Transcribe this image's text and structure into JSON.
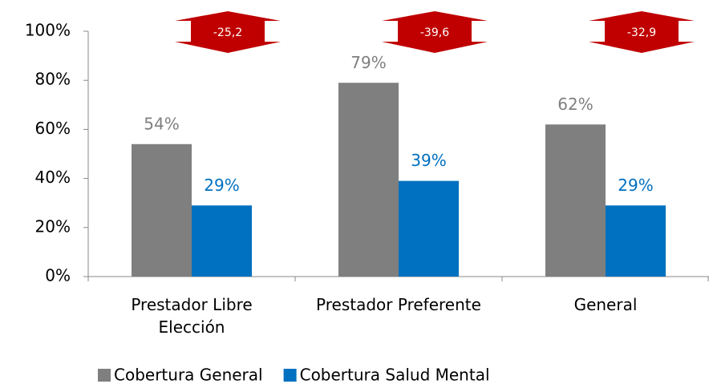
{
  "chart_data": {
    "type": "bar",
    "categories": [
      "Prestador Libre Elección",
      "Prestador Preferente",
      "General"
    ],
    "series": [
      {
        "name": "Cobertura General",
        "color": "#7f7f7f",
        "values": [
          54,
          79,
          62
        ],
        "value_labels": [
          "54%",
          "79%",
          "62%"
        ]
      },
      {
        "name": "Cobertura Salud Mental",
        "color": "#0070c0",
        "values": [
          29,
          39,
          29
        ],
        "value_labels": [
          "29%",
          "39%",
          "29%"
        ]
      }
    ],
    "annotations": [
      "-25,2",
      "-39,6",
      "-32,9"
    ],
    "annotation_color": "#c00000",
    "ylim": [
      0,
      100
    ],
    "yticks": [
      {
        "value": 0,
        "label": "0%"
      },
      {
        "value": 20,
        "label": "20%"
      },
      {
        "value": 40,
        "label": "40%"
      },
      {
        "value": 60,
        "label": "60%"
      },
      {
        "value": 80,
        "label": "80%"
      },
      {
        "value": 100,
        "label": "100%"
      }
    ],
    "legend": "bottom"
  }
}
